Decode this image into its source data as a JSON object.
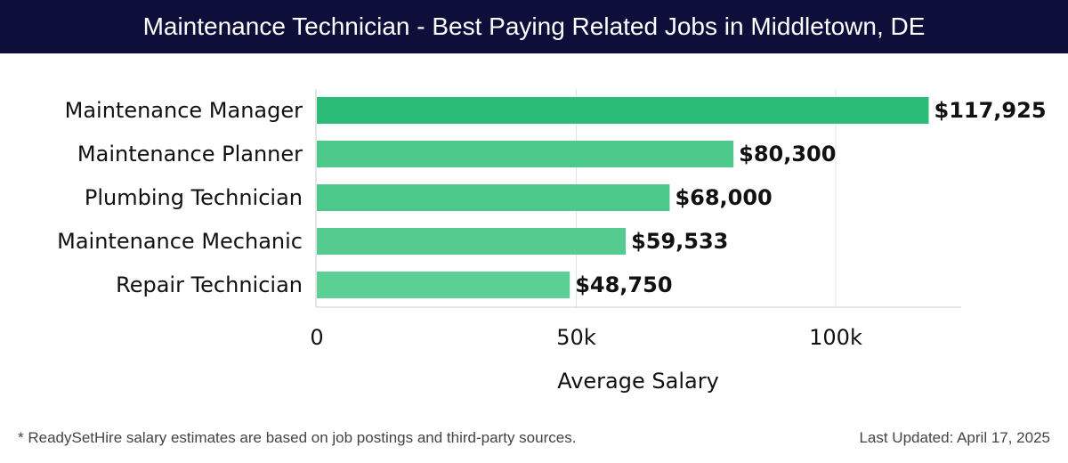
{
  "header": {
    "title": "Maintenance Technician - Best Paying Related Jobs in Middletown, DE"
  },
  "chart_data": {
    "type": "bar",
    "orientation": "horizontal",
    "title": "Maintenance Technician - Best Paying Related Jobs in Middletown, DE",
    "xlabel": "Average Salary",
    "ylabel": "",
    "xlim": [
      0,
      124000
    ],
    "xticks": [
      0,
      50000,
      100000
    ],
    "xtick_labels": [
      "0",
      "50k",
      "100k"
    ],
    "grid": true,
    "categories": [
      "Maintenance Manager",
      "Maintenance Planner",
      "Plumbing Technician",
      "Maintenance Mechanic",
      "Repair Technician"
    ],
    "values": [
      117925,
      80300,
      68000,
      59533,
      48750
    ],
    "value_labels": [
      "$117,925",
      "$80,300",
      "$68,000",
      "$59,533",
      "$48,750"
    ],
    "bar_colors": [
      "#2bbd77",
      "#4cc88b",
      "#4cc88b",
      "#55cb90",
      "#5ccf95"
    ]
  },
  "footer": {
    "note": "* ReadySetHire salary estimates are based on job postings and third-party sources.",
    "updated": "Last Updated: April 17, 2025"
  }
}
